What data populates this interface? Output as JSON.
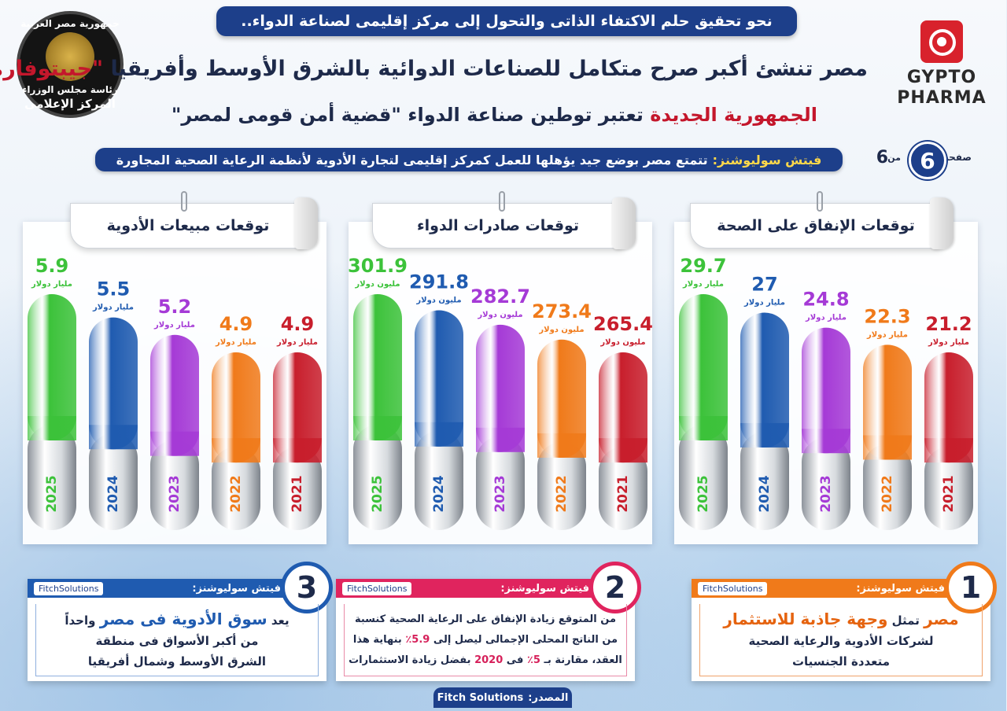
{
  "header": {
    "banner": "نحو تحقيق حلم الاكتفاء الذاتى والتحول إلى مركز إقليمى لصناعة الدواء..",
    "headline_main": "مصر تنشئ أكبر صرح متكامل للصناعات الدوائية بالشرق الأوسط وأفريقيا",
    "headline_brand": "\"جيبتوفارما\"",
    "sub_red": "الجمهورية الجديدة",
    "sub_rest": "تعتبر توطين صناعة الدواء \"قضية أمن قومى لمصر\""
  },
  "emblem": {
    "line1": "جمهورية مصر العربية",
    "line2": "رئاسة مجلس الوزراء",
    "line3": "المركز الإعلامى"
  },
  "logo": {
    "line1": "GYPTO",
    "line2": "PHARMA"
  },
  "fitch_banner": {
    "label": "فيتش سوليوشنز:",
    "text": "تتمتع مصر بوضع جيد يؤهلها للعمل كمركز إقليمى لتجارة الأدوية لأنظمة الرعاية الصحية المجاورة"
  },
  "pager": {
    "label": "صفحة",
    "current": "6",
    "of": "من",
    "total": "6"
  },
  "colors": {
    "navy": "#1d3f8a",
    "green": "#3cc23a",
    "blue": "#1f5bb0",
    "purple": "#a53ad6",
    "orange": "#f07a1a",
    "red": "#c81e2c"
  },
  "chart_data": [
    {
      "type": "bar",
      "title": "توقعات الإنفاق على الصحة",
      "categories": [
        "2021",
        "2022",
        "2023",
        "2024",
        "2025"
      ],
      "values": [
        21.2,
        22.3,
        24.8,
        27,
        29.7
      ],
      "value_labels": [
        "21.2",
        "22.3",
        "24.8",
        "27",
        "29.7"
      ],
      "unit": "مليار دولار",
      "ylim": [
        0,
        32
      ]
    },
    {
      "type": "bar",
      "title": "توقعات صادرات الدواء",
      "categories": [
        "2021",
        "2022",
        "2023",
        "2024",
        "2025"
      ],
      "values": [
        265.4,
        273.4,
        282.7,
        291.8,
        301.9
      ],
      "value_labels": [
        "265.4",
        "273.4",
        "282.7",
        "291.8",
        "301.9"
      ],
      "unit": "مليون دولار",
      "ylim": [
        0,
        320
      ]
    },
    {
      "type": "bar",
      "title": "توقعات مبيعات الأدوية",
      "categories": [
        "2021",
        "2022",
        "2023",
        "2024",
        "2025"
      ],
      "values": [
        4.9,
        4.9,
        5.2,
        5.5,
        5.9
      ],
      "value_labels": [
        "4.9",
        "4.9",
        "5.2",
        "5.5",
        "5.9"
      ],
      "unit": "مليار دولار",
      "ylim": [
        0,
        6.4
      ]
    }
  ],
  "cards": [
    {
      "number": "1",
      "head": "فيتش سوليوشنز:",
      "fs_logo": "FitchSolutions",
      "l1_a": "مصر",
      "l1_b": "تمثل",
      "l1_c": "وجهة جاذبة للاستثمار",
      "l2": "لشركات الأدوية والرعاية الصحية",
      "l3": "متعددة الجنسيات"
    },
    {
      "number": "2",
      "head": "فيتش سوليوشنز:",
      "fs_logo": "FitchSolutions",
      "l1": "من المتوقع زيادة الإنفاق على الرعاية الصحية كنسبة",
      "l2_a": "من الناتج المحلى الإجمالى ليصل إلى",
      "l2_b": "5.9٪",
      "l2_c": "بنهاية هذا",
      "l3_a": "العقد، مقارنة بـ",
      "l3_b": "5٪",
      "l3_c": "فى",
      "l3_d": "2020",
      "l3_e": "بفضل زيادة الاستثمارات"
    },
    {
      "number": "3",
      "head": "فيتش سوليوشنز:",
      "fs_logo": "FitchSolutions",
      "l1_a": "يعد",
      "l1_b": "سوق الأدوية فى مصر",
      "l1_c": "واحداً",
      "l2": "من أكبر الأسواق فى منطقة",
      "l3": "الشرق الأوسط وشمال أفريقيا"
    }
  ],
  "source": {
    "label": "المصدر:",
    "value": "Fitch Solutions"
  }
}
